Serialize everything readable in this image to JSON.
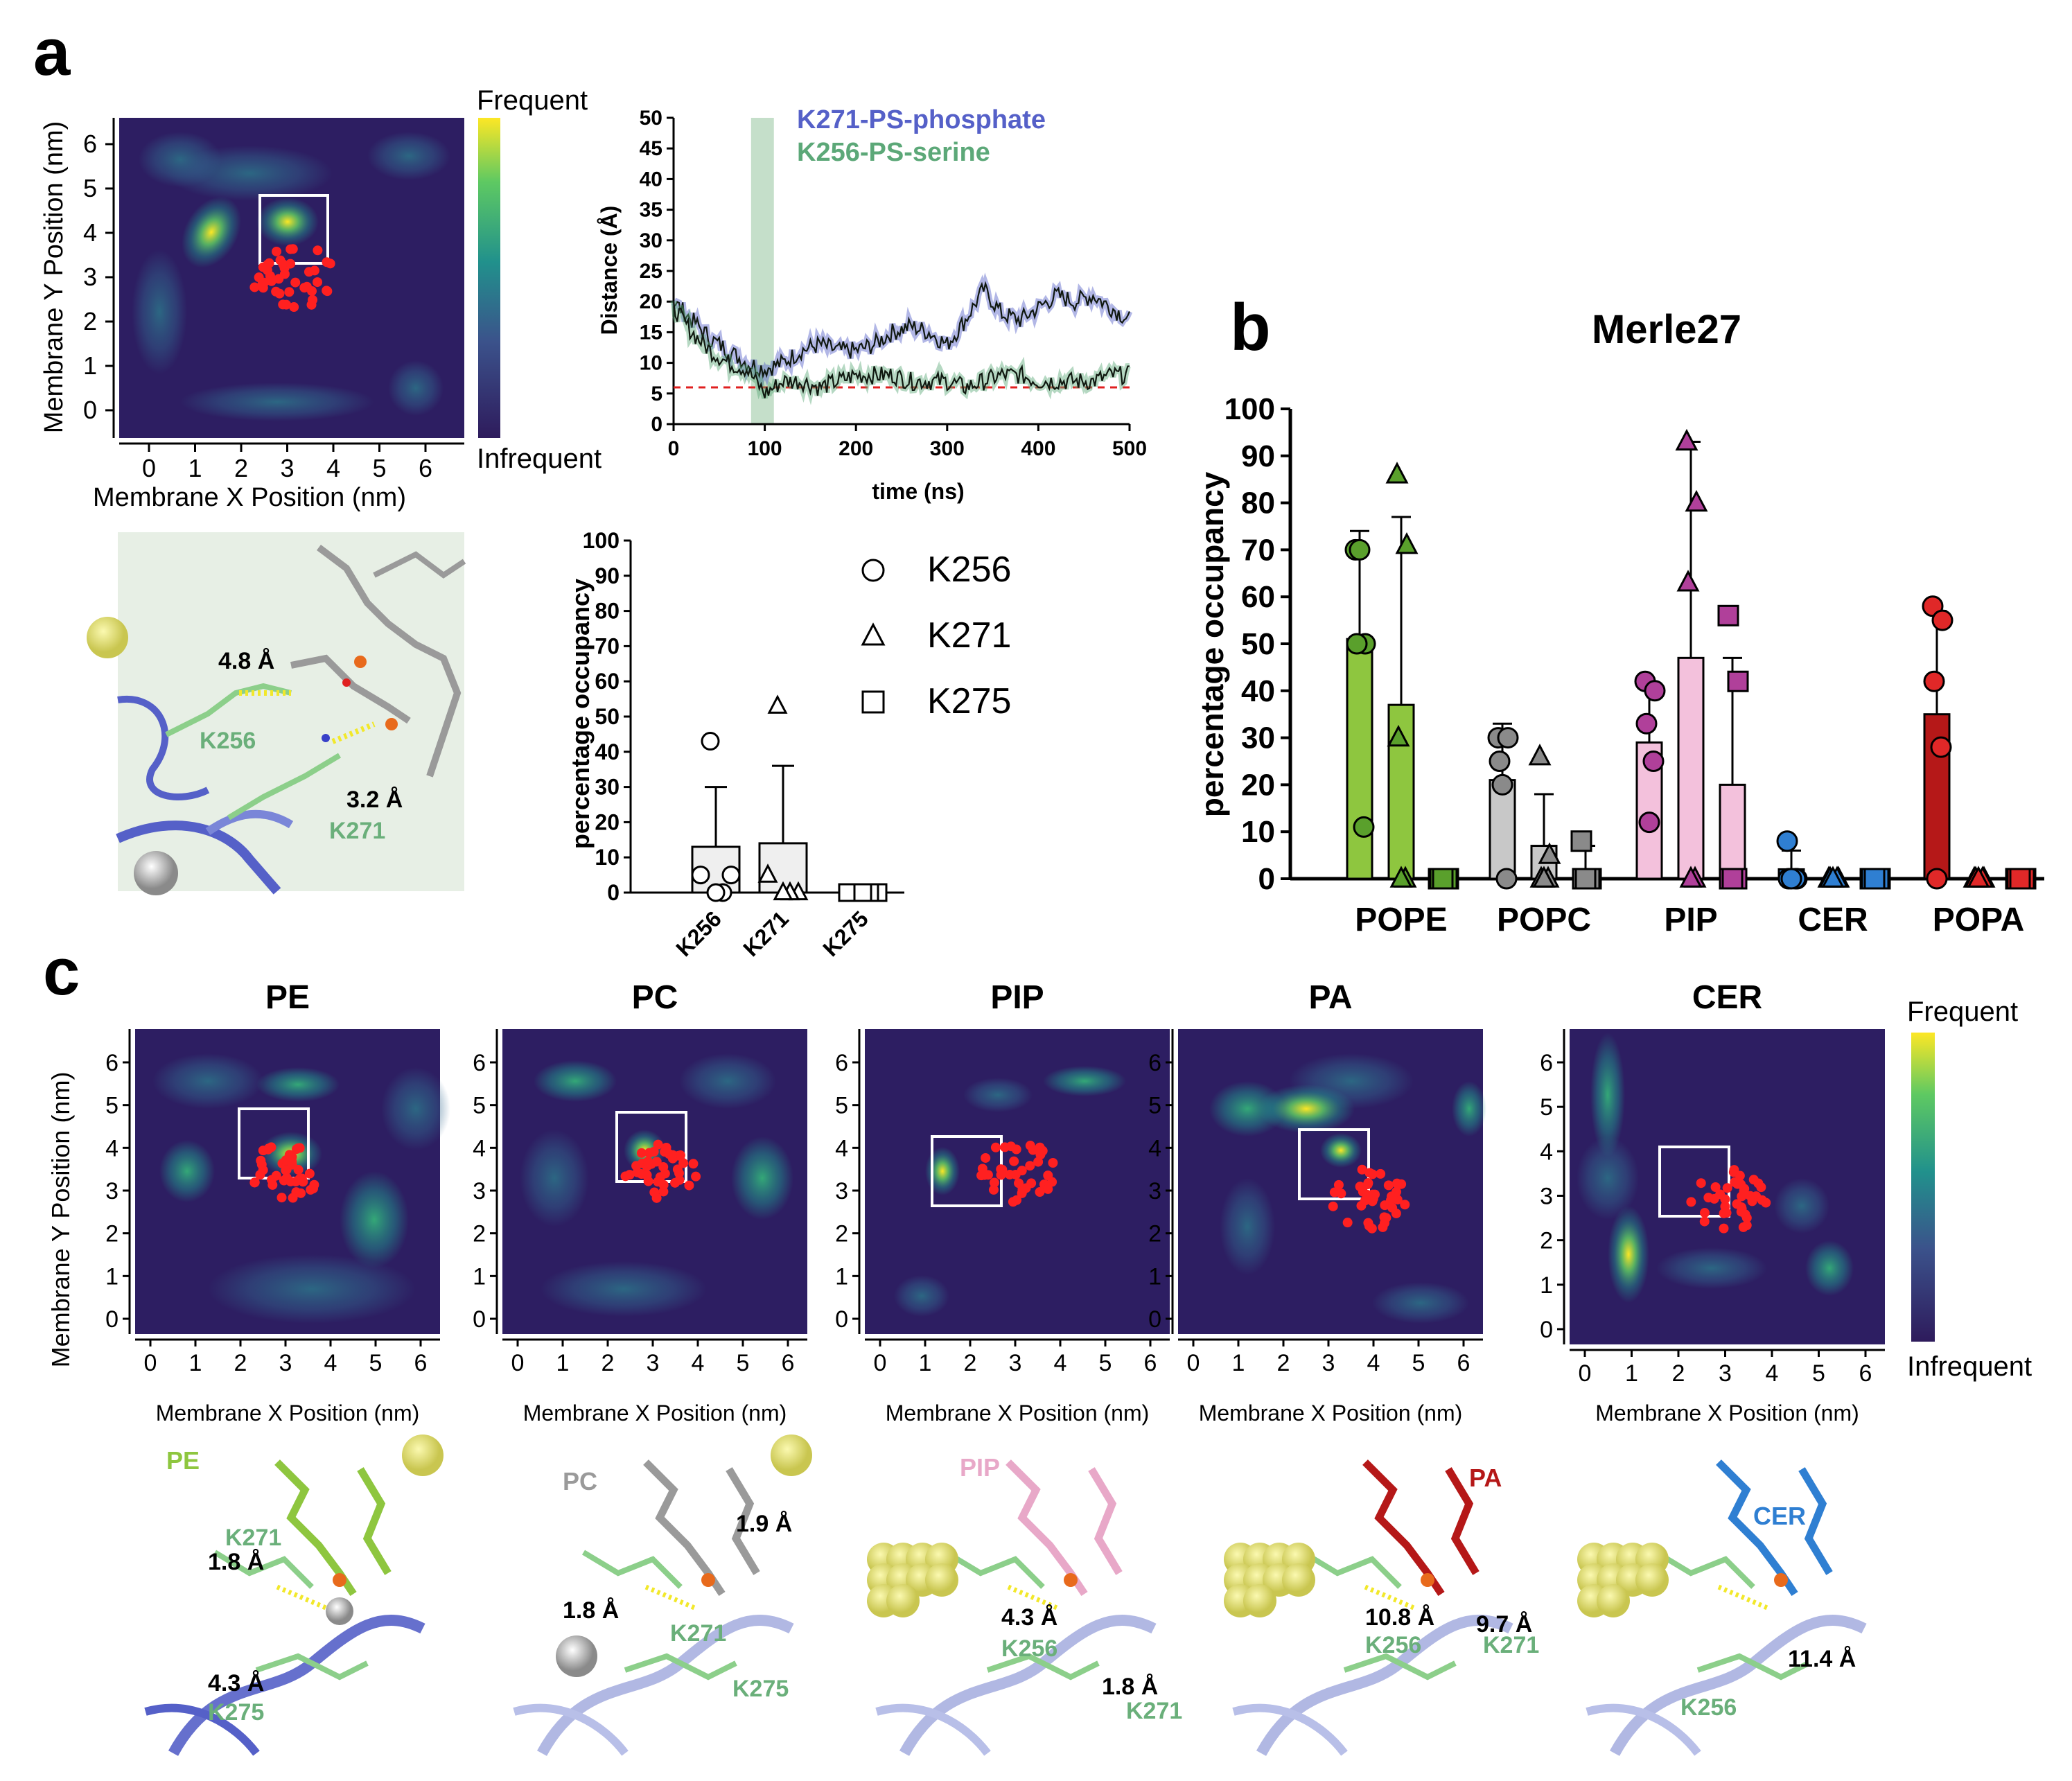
{
  "panel_labels": [
    "a",
    "b",
    "c"
  ],
  "colors": {
    "heat_low": "#2d1e62",
    "heat_mid": "#21918c",
    "heat_high": "#fde725",
    "red_dot": "#ff2020",
    "ps_phosphate": "#5560c8",
    "ps_serine": "#5ca878",
    "lysine_label": "#6aaf7a",
    "pope": "#8ec63f",
    "popc": "#c8c8c8",
    "pip": "#f3c1dc",
    "cer": "#2f7fd2",
    "popa": "#b51818"
  },
  "heatmap_a": {
    "xlabel": "Membrane X Position (nm)",
    "ylabel": "Membrane Y Position (nm)",
    "xticks": [
      "0",
      "1",
      "2",
      "3",
      "4",
      "5",
      "6"
    ],
    "yticks": [
      "0",
      "1",
      "2",
      "3",
      "4",
      "5",
      "6"
    ],
    "colorbar_top": "Frequent",
    "colorbar_bottom": "Infrequent"
  },
  "panel_a_structure": {
    "dist1": "4.8 Å",
    "dist2": "3.2 Å",
    "res1": "K256",
    "res2": "K271"
  },
  "panel_c": {
    "xlabel": "Membrane X Position (nm)",
    "ylabel": "Membrane Y Position (nm)",
    "xticks": [
      "0",
      "1",
      "2",
      "3",
      "4",
      "5",
      "6"
    ],
    "yticks": [
      "0",
      "1",
      "2",
      "3",
      "4",
      "5",
      "6"
    ],
    "colorbar_top": "Frequent",
    "colorbar_bottom": "Infrequent",
    "maps": [
      {
        "title": "PE"
      },
      {
        "title": "PC"
      },
      {
        "title": "PIP"
      },
      {
        "title": "PA"
      },
      {
        "title": "CER"
      }
    ],
    "structures": [
      {
        "lipid": "PE",
        "d1": "1.8 Å",
        "d2": "4.3 Å",
        "r1": "K271",
        "r2": "K275"
      },
      {
        "lipid": "PC",
        "d1": "1.9 Å",
        "d2": "1.8 Å",
        "r1": "K271",
        "r2": "K275"
      },
      {
        "lipid": "PIP",
        "d1": "4.3 Å",
        "d2": "1.8 Å",
        "r1": "K256",
        "r2": "K271"
      },
      {
        "lipid": "PA",
        "d1": "10.8 Å",
        "d2": "9.7 Å",
        "r1": "K256",
        "r2": "K271"
      },
      {
        "lipid": "CER",
        "d1": "11.4 Å",
        "r1": "K256"
      }
    ]
  },
  "chart_data": [
    {
      "type": "line",
      "title": "",
      "xlabel": "time (ns)",
      "ylabel": "Distance (Å)",
      "xlim": [
        0,
        500
      ],
      "ylim": [
        0,
        50
      ],
      "xticks": [
        0,
        100,
        200,
        300,
        400,
        500
      ],
      "yticks": [
        0,
        5,
        10,
        15,
        20,
        25,
        30,
        35,
        40,
        45,
        50
      ],
      "highlight_band": [
        85,
        110
      ],
      "threshold": 6,
      "series": [
        {
          "name": "K271-PS-phosphate",
          "x": [
            0,
            20,
            40,
            60,
            80,
            100,
            120,
            140,
            160,
            180,
            200,
            220,
            240,
            260,
            280,
            300,
            320,
            340,
            360,
            380,
            400,
            420,
            440,
            460,
            480,
            500
          ],
          "y": [
            20,
            17,
            14,
            12,
            10,
            9,
            10,
            12,
            13,
            12,
            12,
            13,
            15,
            16,
            15,
            13,
            17,
            22,
            18,
            17,
            19,
            21,
            20,
            21,
            19,
            17
          ]
        },
        {
          "name": "K256-PS-serine",
          "x": [
            0,
            20,
            40,
            60,
            80,
            100,
            120,
            140,
            160,
            180,
            200,
            220,
            240,
            260,
            280,
            300,
            320,
            340,
            360,
            380,
            400,
            420,
            440,
            460,
            480,
            500
          ],
          "y": [
            19,
            15,
            12,
            10,
            9,
            5,
            7,
            7,
            6,
            7,
            8,
            8,
            8,
            7,
            7,
            7,
            6,
            7,
            8,
            8,
            7,
            7,
            7,
            7,
            8,
            8
          ]
        }
      ]
    },
    {
      "type": "bar",
      "title": "",
      "ylabel": "percentage occupancy",
      "ylim": [
        0,
        100
      ],
      "yticks": [
        0,
        10,
        20,
        30,
        40,
        50,
        60,
        70,
        80,
        90,
        100
      ],
      "categories": [
        "K256",
        "K271",
        "K275"
      ],
      "markers": [
        "circle",
        "triangle",
        "square"
      ],
      "legend": [
        "K256",
        "K271",
        "K275"
      ],
      "values": [
        13,
        14,
        1
      ],
      "errors": [
        17,
        22,
        1
      ],
      "points": [
        [
          43,
          5,
          5,
          0,
          0
        ],
        [
          53,
          5,
          0,
          0,
          0
        ],
        [
          0,
          0,
          0,
          0,
          0
        ]
      ]
    },
    {
      "type": "bar",
      "title": "Merle27",
      "ylabel": "percentage occupancy",
      "ylim": [
        0,
        100
      ],
      "yticks": [
        0,
        10,
        20,
        30,
        40,
        50,
        60,
        70,
        80,
        90,
        100
      ],
      "categories": [
        "POPE",
        "POPC",
        "PIP",
        "CER",
        "POPA"
      ],
      "series": [
        {
          "name": "K256",
          "marker": "circle",
          "values": [
            51,
            21,
            29,
            2,
            35
          ],
          "errors": [
            23,
            12,
            12,
            4,
            22
          ],
          "points": [
            [
              70,
              50,
              50,
              11,
              70
            ],
            [
              30,
              30,
              25,
              0,
              20
            ],
            [
              42,
              40,
              33,
              25,
              12
            ],
            [
              8,
              0,
              0,
              0,
              0
            ],
            [
              58,
              55,
              42,
              28,
              0
            ]
          ]
        },
        {
          "name": "K271",
          "marker": "triangle",
          "values": [
            37,
            7,
            47,
            0,
            0
          ],
          "errors": [
            40,
            11,
            46,
            0,
            0
          ],
          "points": [
            [
              86,
              71,
              30,
              0,
              0
            ],
            [
              26,
              5,
              0,
              0,
              0
            ],
            [
              93,
              80,
              63,
              0,
              0
            ],
            [
              0,
              0,
              0,
              0,
              0
            ],
            [
              0,
              0,
              0,
              0,
              0
            ]
          ]
        },
        {
          "name": "K275",
          "marker": "square",
          "values": [
            0,
            2,
            20,
            0,
            0
          ],
          "errors": [
            0,
            5,
            27,
            0,
            0
          ],
          "points": [
            [
              0,
              0,
              0,
              0,
              0
            ],
            [
              8,
              0,
              0,
              0,
              0
            ],
            [
              56,
              42,
              0,
              0,
              0
            ],
            [
              0,
              0,
              0,
              0,
              0
            ],
            [
              0,
              0,
              0,
              0,
              0
            ]
          ]
        }
      ]
    }
  ]
}
